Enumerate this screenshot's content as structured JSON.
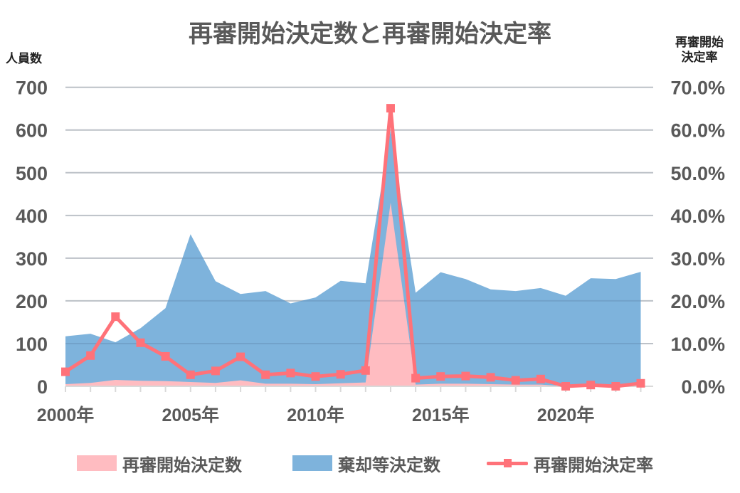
{
  "title": "再審開始決定数と再審開始決定率",
  "axis": {
    "left_label": "人員数",
    "right_label_line1": "再審開始",
    "right_label_line2": "決定率",
    "left_ticks": [
      "0",
      "100",
      "200",
      "300",
      "400",
      "500",
      "600",
      "700"
    ],
    "right_ticks": [
      "0.0%",
      "10.0%",
      "20.0%",
      "30.0%",
      "40.0%",
      "50.0%",
      "60.0%",
      "70.0%"
    ],
    "x_tick_labels": [
      "2000年",
      "2005年",
      "2010年",
      "2015年",
      "2020年"
    ]
  },
  "legend": {
    "items": [
      {
        "label": "再審開始決定数",
        "color": "#ffbcc1",
        "kind": "area"
      },
      {
        "label": "棄却等決定数",
        "color": "#7eb3dc",
        "kind": "area"
      },
      {
        "label": "再審開始決定率",
        "color": "#ff7279",
        "kind": "line-marker"
      }
    ]
  },
  "colors": {
    "pink_area": "#ffbcc1",
    "blue_area": "#7eb3dc",
    "rate_line": "#ff7279",
    "grid": "#d9d9d9",
    "text": "#595959"
  },
  "chart_data": {
    "type": "area",
    "title": "再審開始決定数と再審開始決定率",
    "xlabel": "",
    "ylabel": "人員数",
    "y2label": "再審開始決定率",
    "ylim": [
      0,
      700
    ],
    "y2lim": [
      0,
      70
    ],
    "grid": true,
    "legend_position": "bottom",
    "x": [
      2000,
      2001,
      2002,
      2003,
      2004,
      2005,
      2006,
      2007,
      2008,
      2009,
      2010,
      2011,
      2012,
      2013,
      2014,
      2015,
      2016,
      2017,
      2018,
      2019,
      2020,
      2021,
      2022,
      2023
    ],
    "series": [
      {
        "name": "棄却等決定数",
        "type": "area",
        "axis": "left",
        "values": [
          117,
          123,
          103,
          136,
          183,
          356,
          246,
          216,
          223,
          194,
          208,
          247,
          241,
          600,
          219,
          267,
          251,
          227,
          223,
          230,
          212,
          253,
          251,
          268
        ]
      },
      {
        "name": "再審開始決定数",
        "type": "area",
        "axis": "left",
        "values": [
          5,
          8,
          15,
          13,
          12,
          10,
          8,
          14,
          6,
          6,
          5,
          7,
          9,
          430,
          4,
          6,
          6,
          5,
          4,
          4,
          0,
          1,
          0,
          2
        ]
      },
      {
        "name": "再審開始決定率",
        "type": "line",
        "axis": "right",
        "unit": "%",
        "values": [
          3.4,
          7.2,
          16.3,
          10.2,
          7.0,
          2.7,
          3.6,
          6.9,
          2.7,
          3.1,
          2.3,
          2.8,
          3.7,
          65.1,
          1.9,
          2.3,
          2.4,
          2.1,
          1.4,
          1.7,
          0.0,
          0.3,
          0.0,
          0.7
        ]
      }
    ]
  }
}
